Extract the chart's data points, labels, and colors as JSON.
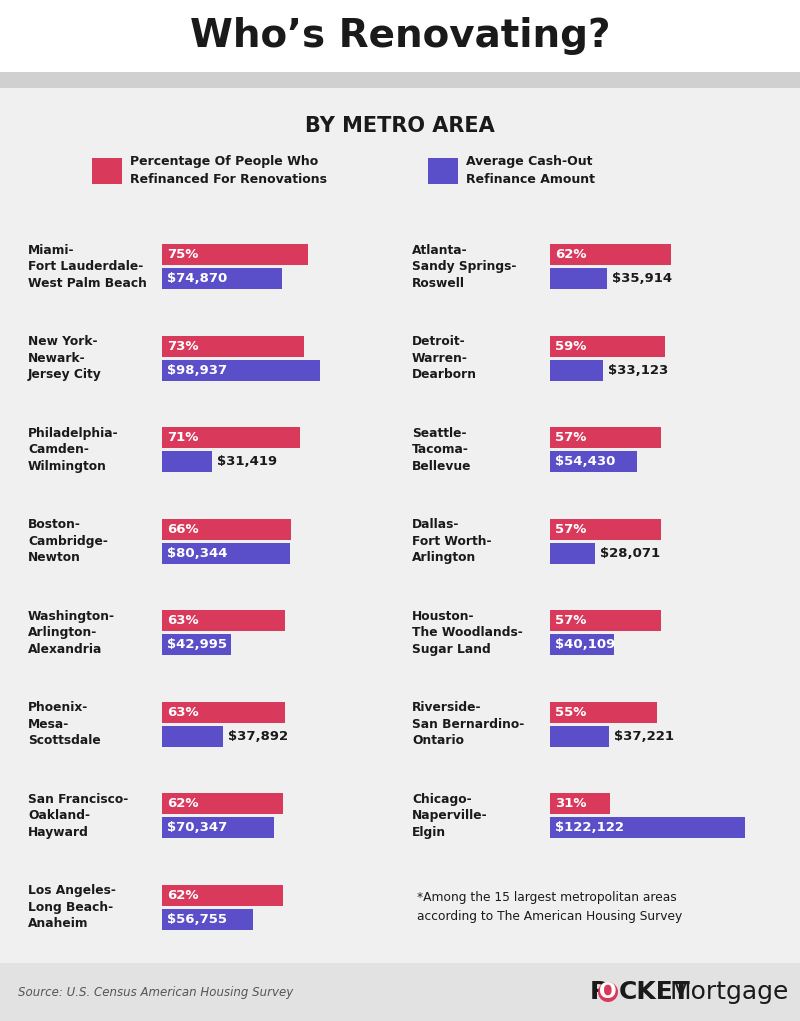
{
  "title": "Who’s Renovating?",
  "subtitle": "BY METRO AREA",
  "background_color": "#f0f0f0",
  "white_color": "#ffffff",
  "red_color": "#d93a5c",
  "purple_color": "#5b4fc9",
  "left_cities": [
    {
      "name": "Miami-\nFort Lauderdale-\nWest Palm Beach",
      "pct": 75,
      "amt": 74870
    },
    {
      "name": "New York-\nNewark-\nJersey City",
      "pct": 73,
      "amt": 98937
    },
    {
      "name": "Philadelphia-\nCamden-\nWilmington",
      "pct": 71,
      "amt": 31419
    },
    {
      "name": "Boston-\nCambridge-\nNewton",
      "pct": 66,
      "amt": 80344
    },
    {
      "name": "Washington-\nArlington-\nAlexandria",
      "pct": 63,
      "amt": 42995
    },
    {
      "name": "Phoenix-\nMesa-\nScottsdale",
      "pct": 63,
      "amt": 37892
    },
    {
      "name": "San Francisco-\nOakland-\nHayward",
      "pct": 62,
      "amt": 70347
    },
    {
      "name": "Los Angeles-\nLong Beach-\nAnaheim",
      "pct": 62,
      "amt": 56755
    }
  ],
  "right_cities": [
    {
      "name": "Atlanta-\nSandy Springs-\nRoswell",
      "pct": 62,
      "amt": 35914
    },
    {
      "name": "Detroit-\nWarren-\nDearborn",
      "pct": 59,
      "amt": 33123
    },
    {
      "name": "Seattle-\nTacoma-\nBellevue",
      "pct": 57,
      "amt": 54430
    },
    {
      "name": "Dallas-\nFort Worth-\nArlington",
      "pct": 57,
      "amt": 28071
    },
    {
      "name": "Houston-\nThe Woodlands-\nSugar Land",
      "pct": 57,
      "amt": 40109
    },
    {
      "name": "Riverside-\nSan Bernardino-\nOntario",
      "pct": 55,
      "amt": 37221
    },
    {
      "name": "Chicago-\nNaperville-\nElgin",
      "pct": 31,
      "amt": 122122
    },
    null
  ],
  "pct_max": 75,
  "amt_max": 122122,
  "source_text": "Source: U.S. Census American Housing Survey",
  "footnote": "*Among the 15 largest metropolitan areas\naccording to The American Housing Survey",
  "legend_red_label": "Percentage Of People Who\nRefinanced For Renovations",
  "legend_purple_label": "Average Cash-Out\nRefinance Amount"
}
